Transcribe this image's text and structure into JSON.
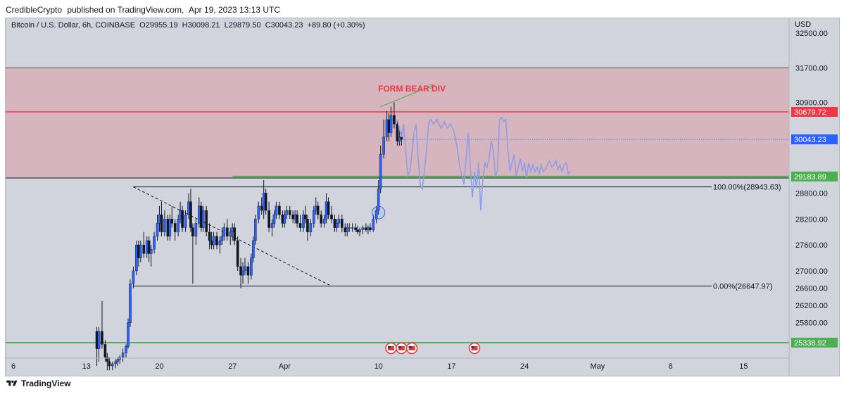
{
  "header": {
    "author": "CredibleCrypto",
    "published_text": "published on TradingView.com,",
    "datetime": "Apr 19, 2023 13:13 UTC"
  },
  "symbol_bar": {
    "name": "Bitcoin / U.S. Dollar, 6h, COINBASE",
    "open_label": "O",
    "open": "29955.19",
    "high_label": "H",
    "high": "30098.21",
    "low_label": "L",
    "low": "29879.50",
    "close_label": "C",
    "close": "30043.23",
    "change": "+89.80 (+0.30%)"
  },
  "footer": {
    "brand": "TradingView"
  },
  "colors": {
    "background": "#d1d4dc",
    "zone_fill": "#d6b5be",
    "resistance_red": "#f23645",
    "support_green": "#4caf50",
    "candle_up": "#2962ff",
    "candle_down": "#131722",
    "projection": "#8f9ee8",
    "annotation_red": "#f23645",
    "arrow_green": "#4caf50",
    "last_price": "#2962ff"
  },
  "chart_data": {
    "type": "candlestick",
    "timeframe": "6h",
    "currency": "USD",
    "ylim": [
      25100,
      33000
    ],
    "y_ticks": [
      "32500.00",
      "31700.00",
      "30900.00",
      "28800.00",
      "28200.00",
      "27600.00",
      "27000.00",
      "26600.00",
      "26200.00",
      "25800.00"
    ],
    "x_ticks": [
      {
        "label": "6",
        "day": 6
      },
      {
        "label": "13",
        "day": 13
      },
      {
        "label": "20",
        "day": 20
      },
      {
        "label": "27",
        "day": 27
      },
      {
        "label": "Apr",
        "day": 32
      },
      {
        "label": "10",
        "day": 41
      },
      {
        "label": "17",
        "day": 48
      },
      {
        "label": "24",
        "day": 55
      },
      {
        "label": "May",
        "day": 62
      },
      {
        "label": "8",
        "day": 69
      },
      {
        "label": "15",
        "day": 76
      }
    ],
    "price_labels": [
      {
        "value": 30679.72,
        "text": "30679.72",
        "role": "resistance"
      },
      {
        "value": 30043.23,
        "text": "30043.23",
        "role": "last"
      },
      {
        "value": 29183.89,
        "text": "29183.89",
        "role": "support"
      },
      {
        "value": 25338.92,
        "text": "25338.92",
        "role": "support"
      }
    ],
    "levels": [
      {
        "value": 31700,
        "kind": "zone-top"
      },
      {
        "value": 30679.72,
        "kind": "resistance"
      },
      {
        "value": 29150,
        "kind": "zone-bottom"
      },
      {
        "value": 29183.89,
        "kind": "support"
      },
      {
        "value": 28943.63,
        "kind": "fib"
      },
      {
        "value": 26647.97,
        "kind": "fib"
      },
      {
        "value": 25338.92,
        "kind": "support"
      }
    ],
    "fib_labels": [
      {
        "text": "100.00%(28943.63)",
        "value": 28943.63
      },
      {
        "text": "0.00%(26647.97)",
        "value": 26647.97
      }
    ],
    "annotation": {
      "text": "FORM BEAR DIV",
      "day": 44.2,
      "value": 31150
    },
    "arrow": {
      "from": [
        41.2,
        30800
      ],
      "to": [
        46.3,
        31300
      ]
    },
    "trendline": {
      "from": [
        17.5,
        28943.63
      ],
      "to": [
        36.5,
        26647.97
      ]
    },
    "ellipse": {
      "day": 41,
      "value": 28350
    },
    "events_days": [
      42.2,
      43.2,
      44.2,
      50.2
    ],
    "candles": [
      [
        14.0,
        25600,
        25700,
        24800,
        25200
      ],
      [
        14.2,
        25200,
        25700,
        24900,
        25600
      ],
      [
        14.5,
        25600,
        26300,
        25200,
        25300
      ],
      [
        14.8,
        25300,
        25400,
        24900,
        25000
      ],
      [
        15.0,
        25000,
        25100,
        24700,
        24900
      ],
      [
        15.2,
        24900,
        25000,
        24700,
        24800
      ],
      [
        15.5,
        24800,
        24900,
        24700,
        24850
      ],
      [
        15.8,
        24850,
        24950,
        24750,
        24900
      ],
      [
        16.0,
        24900,
        25000,
        24800,
        24950
      ],
      [
        16.2,
        24950,
        25050,
        24850,
        25000
      ],
      [
        16.5,
        25000,
        25200,
        24900,
        25100
      ],
      [
        16.8,
        25100,
        25300,
        25000,
        25250
      ],
      [
        17.0,
        25250,
        25900,
        25200,
        25800
      ],
      [
        17.2,
        25800,
        26800,
        25700,
        26700
      ],
      [
        17.5,
        26700,
        27100,
        26600,
        27000
      ],
      [
        17.8,
        27000,
        27700,
        26900,
        27600
      ],
      [
        18.0,
        27600,
        27700,
        27100,
        27300
      ],
      [
        18.2,
        27300,
        27700,
        27200,
        27600
      ],
      [
        18.5,
        27600,
        27900,
        27300,
        27400
      ],
      [
        18.8,
        27400,
        27800,
        27300,
        27700
      ],
      [
        19.0,
        27700,
        27800,
        27200,
        27400
      ],
      [
        19.2,
        27400,
        27600,
        27100,
        27500
      ],
      [
        19.5,
        27500,
        27900,
        27400,
        27800
      ],
      [
        19.8,
        27800,
        28300,
        27700,
        28100
      ],
      [
        20.0,
        28100,
        28500,
        27900,
        28300
      ],
      [
        20.2,
        28300,
        28600,
        27800,
        27900
      ],
      [
        20.5,
        27900,
        28400,
        27800,
        28200
      ],
      [
        20.8,
        28200,
        28300,
        27700,
        27800
      ],
      [
        21.0,
        27800,
        28300,
        27700,
        28200
      ],
      [
        21.2,
        28200,
        28500,
        28000,
        28100
      ],
      [
        21.5,
        28100,
        28200,
        27700,
        27900
      ],
      [
        21.8,
        27900,
        28300,
        27800,
        28200
      ],
      [
        22.0,
        28200,
        28600,
        28100,
        28400
      ],
      [
        22.2,
        28400,
        28500,
        27900,
        28000
      ],
      [
        22.5,
        28000,
        28400,
        27900,
        28300
      ],
      [
        22.8,
        28300,
        28800,
        28200,
        28600
      ],
      [
        23.0,
        28600,
        28900,
        27900,
        28000
      ],
      [
        23.2,
        28000,
        28100,
        26700,
        27800
      ],
      [
        23.5,
        27800,
        28200,
        27600,
        28100
      ],
      [
        23.8,
        28100,
        28700,
        28000,
        28500
      ],
      [
        24.0,
        28500,
        28600,
        27900,
        28000
      ],
      [
        24.2,
        28000,
        28500,
        27900,
        28400
      ],
      [
        24.5,
        28400,
        28500,
        27800,
        27900
      ],
      [
        24.8,
        27900,
        28100,
        27500,
        27700
      ],
      [
        25.0,
        27700,
        27900,
        27500,
        27600
      ],
      [
        25.2,
        27600,
        27900,
        27500,
        27800
      ],
      [
        25.5,
        27800,
        27900,
        27500,
        27600
      ],
      [
        25.8,
        27600,
        27800,
        27400,
        27700
      ],
      [
        26.0,
        27700,
        28000,
        27600,
        27800
      ],
      [
        26.2,
        27800,
        28100,
        27700,
        28000
      ],
      [
        26.5,
        28000,
        28200,
        27700,
        27800
      ],
      [
        26.8,
        27800,
        28000,
        27600,
        27900
      ],
      [
        27.0,
        27900,
        28100,
        27700,
        28000
      ],
      [
        27.2,
        28000,
        28100,
        27600,
        27700
      ],
      [
        27.5,
        27700,
        27800,
        27000,
        27100
      ],
      [
        27.8,
        27100,
        27300,
        26600,
        26900
      ],
      [
        28.0,
        26900,
        27200,
        26700,
        27000
      ],
      [
        28.2,
        27000,
        27300,
        26900,
        27100
      ],
      [
        28.5,
        27100,
        27200,
        26700,
        26900
      ],
      [
        28.8,
        26900,
        27400,
        26800,
        27300
      ],
      [
        29.0,
        27300,
        27800,
        27200,
        27700
      ],
      [
        29.2,
        27700,
        28300,
        27600,
        28200
      ],
      [
        29.5,
        28200,
        28600,
        28100,
        28500
      ],
      [
        29.8,
        28500,
        28700,
        28300,
        28400
      ],
      [
        30.0,
        28400,
        29100,
        28200,
        28800
      ],
      [
        30.2,
        28800,
        28900,
        28300,
        28400
      ],
      [
        30.5,
        28400,
        28600,
        27900,
        28000
      ],
      [
        30.8,
        28000,
        28200,
        27800,
        28100
      ],
      [
        31.0,
        28100,
        28400,
        28000,
        28300
      ],
      [
        31.2,
        28300,
        28600,
        28200,
        28500
      ],
      [
        31.5,
        28500,
        28600,
        28200,
        28300
      ],
      [
        31.8,
        28300,
        28400,
        28000,
        28100
      ],
      [
        32.0,
        28100,
        28400,
        28000,
        28300
      ],
      [
        32.2,
        28300,
        28500,
        28200,
        28400
      ],
      [
        32.5,
        28400,
        28500,
        28200,
        28300
      ],
      [
        32.8,
        28300,
        28400,
        28100,
        28200
      ],
      [
        33.0,
        28200,
        28400,
        28100,
        28300
      ],
      [
        33.2,
        28300,
        28400,
        28000,
        28100
      ],
      [
        33.5,
        28100,
        28300,
        27900,
        28000
      ],
      [
        33.8,
        28000,
        28400,
        27900,
        28300
      ],
      [
        34.0,
        28300,
        28500,
        28100,
        28200
      ],
      [
        34.2,
        28200,
        28300,
        27700,
        27900
      ],
      [
        34.5,
        27900,
        28200,
        27800,
        28100
      ],
      [
        34.8,
        28100,
        28500,
        28000,
        28400
      ],
      [
        35.0,
        28400,
        28700,
        28300,
        28500
      ],
      [
        35.2,
        28500,
        28600,
        28200,
        28300
      ],
      [
        35.5,
        28300,
        28400,
        28000,
        28100
      ],
      [
        35.8,
        28100,
        28300,
        28000,
        28200
      ],
      [
        36.0,
        28200,
        28800,
        28100,
        28600
      ],
      [
        36.2,
        28600,
        28700,
        28200,
        28300
      ],
      [
        36.5,
        28300,
        28500,
        28100,
        28200
      ],
      [
        36.8,
        28200,
        28300,
        27900,
        28000
      ],
      [
        37.0,
        28000,
        28200,
        27900,
        28100
      ],
      [
        37.2,
        28100,
        28300,
        28000,
        28200
      ],
      [
        37.5,
        28200,
        28300,
        27900,
        28000
      ],
      [
        37.8,
        28000,
        28100,
        27800,
        27900
      ],
      [
        38.0,
        27900,
        28100,
        27800,
        28000
      ],
      [
        38.2,
        28000,
        28100,
        27900,
        28000
      ],
      [
        38.5,
        28000,
        28100,
        27900,
        28000
      ],
      [
        38.8,
        28000,
        28100,
        27900,
        27950
      ],
      [
        39.0,
        27950,
        28050,
        27850,
        27900
      ],
      [
        39.2,
        27900,
        28000,
        27800,
        27950
      ],
      [
        39.5,
        27950,
        28050,
        27850,
        28000
      ],
      [
        39.8,
        28000,
        28100,
        27900,
        27950
      ],
      [
        40.0,
        27950,
        28050,
        27850,
        28000
      ],
      [
        40.2,
        28000,
        28100,
        27900,
        27950
      ],
      [
        40.5,
        27950,
        28300,
        27900,
        28200
      ],
      [
        40.8,
        28200,
        28500,
        28100,
        28400
      ],
      [
        41.0,
        28400,
        29100,
        28300,
        28900
      ],
      [
        41.2,
        28900,
        29900,
        28800,
        29700
      ],
      [
        41.5,
        29700,
        30500,
        29600,
        30100
      ],
      [
        41.8,
        30100,
        30700,
        30000,
        30500
      ],
      [
        42.0,
        30500,
        30650,
        30000,
        30200
      ],
      [
        42.2,
        30200,
        30800,
        30100,
        30600
      ],
      [
        42.5,
        30600,
        30900,
        30300,
        30400
      ],
      [
        42.8,
        30400,
        30500,
        29900,
        30000
      ],
      [
        43.0,
        30000,
        30300,
        29900,
        30100
      ],
      [
        43.2,
        30100,
        30200,
        29900,
        30043
      ]
    ],
    "projection": [
      [
        42.8,
        30500
      ],
      [
        43.0,
        30300
      ],
      [
        43.2,
        30100
      ],
      [
        43.4,
        30400
      ],
      [
        43.6,
        29800
      ],
      [
        43.8,
        29200
      ],
      [
        44.0,
        29300
      ],
      [
        44.2,
        29700
      ],
      [
        44.4,
        30200
      ],
      [
        44.6,
        30400
      ],
      [
        44.8,
        29600
      ],
      [
        45.0,
        29000
      ],
      [
        45.2,
        28900
      ],
      [
        45.4,
        29300
      ],
      [
        45.6,
        29800
      ],
      [
        45.8,
        30400
      ],
      [
        46.0,
        30500
      ],
      [
        46.3,
        30400
      ],
      [
        46.6,
        30500
      ],
      [
        47.0,
        30300
      ],
      [
        47.3,
        30450
      ],
      [
        47.6,
        30300
      ],
      [
        47.9,
        30400
      ],
      [
        48.2,
        30250
      ],
      [
        48.5,
        29900
      ],
      [
        48.8,
        29400
      ],
      [
        49.0,
        29200
      ],
      [
        49.2,
        29000
      ],
      [
        49.4,
        29600
      ],
      [
        49.6,
        30200
      ],
      [
        49.8,
        29400
      ],
      [
        50.0,
        28700
      ],
      [
        50.2,
        29300
      ],
      [
        50.4,
        28900
      ],
      [
        50.6,
        29500
      ],
      [
        50.8,
        28400
      ],
      [
        51.0,
        29100
      ],
      [
        51.2,
        29500
      ],
      [
        51.4,
        29400
      ],
      [
        51.6,
        29600
      ],
      [
        51.8,
        30000
      ],
      [
        52.0,
        29800
      ],
      [
        52.2,
        29200
      ],
      [
        52.4,
        29300
      ],
      [
        52.6,
        30500
      ],
      [
        52.8,
        30550
      ],
      [
        53.0,
        30450
      ],
      [
        53.2,
        30500
      ],
      [
        53.4,
        29800
      ],
      [
        53.6,
        29300
      ],
      [
        53.8,
        29500
      ],
      [
        54.0,
        29700
      ],
      [
        54.2,
        29200
      ],
      [
        54.4,
        29400
      ],
      [
        54.6,
        29600
      ],
      [
        54.8,
        29300
      ],
      [
        55.0,
        29500
      ],
      [
        55.2,
        29150
      ],
      [
        55.4,
        29500
      ],
      [
        55.6,
        29300
      ],
      [
        55.8,
        29450
      ],
      [
        56.0,
        29300
      ],
      [
        56.2,
        29400
      ],
      [
        56.4,
        29250
      ],
      [
        56.6,
        29450
      ],
      [
        56.8,
        29300
      ],
      [
        57.0,
        29350
      ],
      [
        57.2,
        29450
      ],
      [
        57.4,
        29550
      ],
      [
        57.6,
        29400
      ],
      [
        57.8,
        29450
      ],
      [
        58.0,
        29550
      ],
      [
        58.2,
        29350
      ],
      [
        58.4,
        29450
      ],
      [
        58.6,
        29300
      ],
      [
        58.8,
        29450
      ],
      [
        59.0,
        29500
      ],
      [
        59.2,
        29250
      ],
      [
        59.4,
        29300
      ]
    ]
  }
}
